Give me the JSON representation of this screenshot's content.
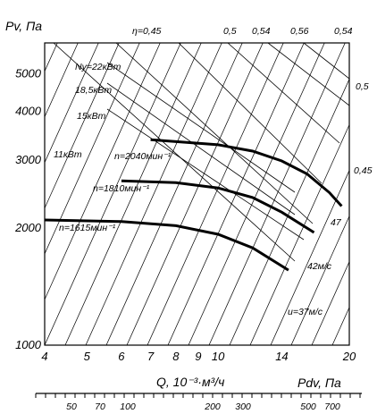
{
  "chart_data": {
    "type": "line",
    "title": "",
    "ylabel": "Pv, Па",
    "xlabel": "Q, 10⁻³·м³/ч",
    "x_scale": "log",
    "y_scale": "log",
    "xlim": [
      4,
      20
    ],
    "ylim": [
      1000,
      6000
    ],
    "x_ticks": [
      4,
      5,
      6,
      7,
      8,
      9,
      10,
      14,
      20
    ],
    "x_tick_labels": [
      "4",
      "5",
      "6",
      "7",
      "8",
      "9",
      "10",
      "14",
      "20"
    ],
    "y_ticks": [
      1000,
      2000,
      3000,
      4000,
      5000
    ],
    "y_tick_labels": [
      "1000",
      "2000",
      "3000",
      "4000",
      "5000"
    ],
    "grid": true,
    "series": [
      {
        "name": "n=2040мин⁻¹",
        "x": [
          7.0,
          10,
          12,
          14,
          16,
          18,
          19.2
        ],
        "y": [
          3380,
          3280,
          3160,
          2980,
          2760,
          2470,
          2280
        ]
      },
      {
        "name": "n=1810мин⁻¹",
        "x": [
          6.0,
          8,
          10,
          12,
          14,
          16.6
        ],
        "y": [
          2650,
          2620,
          2540,
          2400,
          2200,
          1950
        ]
      },
      {
        "name": "n=1615мин⁻¹",
        "x": [
          4.0,
          6,
          8,
          10,
          12,
          14.5
        ],
        "y": [
          2100,
          2080,
          2030,
          1930,
          1780,
          1560
        ]
      }
    ],
    "power_labels": [
      "Ny=22кВт",
      "18,5кВт",
      "15кВт",
      "11кВт"
    ],
    "efficiency_labels": [
      "η=0,45",
      "0,5",
      "0,54",
      "0,56",
      "0,54",
      "0,5",
      "0,45"
    ],
    "velocity_labels": [
      "47",
      "42м/с",
      "u=37м/с"
    ],
    "secondary_axis": {
      "label": "Pdv, Па",
      "ticks": [
        "50",
        "70",
        "100",
        "200",
        "300",
        "500",
        "700"
      ]
    }
  }
}
